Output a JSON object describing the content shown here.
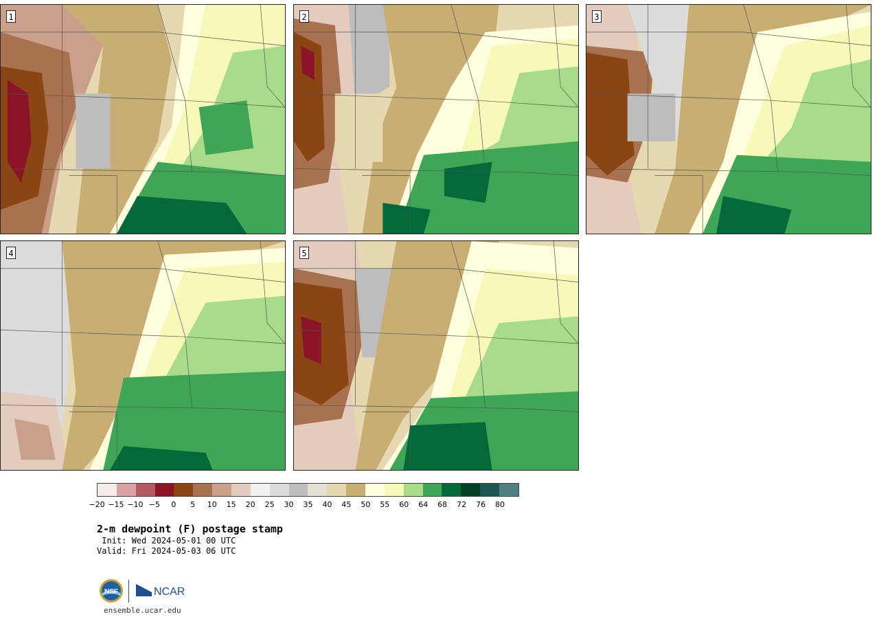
{
  "panels": [
    {
      "label": "1"
    },
    {
      "label": "2"
    },
    {
      "label": "3"
    },
    {
      "label": "4"
    },
    {
      "label": "5"
    }
  ],
  "colorbar": {
    "colors": [
      "#f5ecea",
      "#d9a2a6",
      "#b35a62",
      "#8b1526",
      "#8b4513",
      "#a8714f",
      "#c9a08a",
      "#e3cbbd",
      "#f1f1f1",
      "#dcdcdc",
      "#bdbdbd",
      "#e4e1d3",
      "#e6d8b0",
      "#c8ae72",
      "#ffffe0",
      "#f6f9b8",
      "#a9dc8a",
      "#3fa656",
      "#03693a",
      "#023f25",
      "#1a5753",
      "#4f7f80"
    ],
    "tick_labels": [
      "−20",
      "−15",
      "−10",
      "−5",
      "0",
      "5",
      "10",
      "15",
      "20",
      "25",
      "30",
      "35",
      "40",
      "45",
      "50",
      "55",
      "60",
      "64",
      "68",
      "72",
      "76",
      "80"
    ]
  },
  "title": "2-m dewpoint (F) postage stamp",
  "init": " Init: Wed 2024-05-01 00 UTC",
  "valid": "Valid: Fri 2024-05-03 06 UTC",
  "website": "ensemble.ucar.edu",
  "logos": {
    "nsf": "NSF",
    "ncar": "NCAR"
  }
}
